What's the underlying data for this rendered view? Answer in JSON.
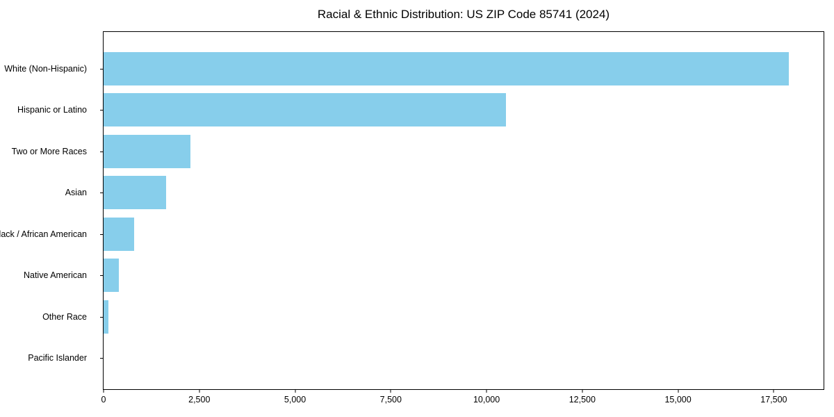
{
  "title": "Racial & Ethnic Distribution: US ZIP Code 85741 (2024)",
  "chart_data": {
    "type": "bar",
    "orientation": "horizontal",
    "title": "Racial & Ethnic Distribution: US ZIP Code 85741 (2024)",
    "xlabel": "",
    "ylabel": "",
    "categories": [
      "White (Non-Hispanic)",
      "Hispanic or Latino",
      "Two or More Races",
      "Asian",
      "Black / African American",
      "Native American",
      "Other Race",
      "Pacific Islander"
    ],
    "values": [
      17900,
      10500,
      2260,
      1630,
      800,
      400,
      120,
      0
    ],
    "xlim": [
      0,
      18800
    ],
    "x_ticks": [
      0,
      2500,
      5000,
      7500,
      10000,
      12500,
      15000,
      17500
    ],
    "x_tick_labels": [
      "0",
      "2,500",
      "5,000",
      "7,500",
      "10,000",
      "12,500",
      "15,000",
      "17,500"
    ],
    "bar_color": "#87CEEB",
    "grid": false,
    "legend": false
  },
  "colors": {
    "bar": "#87CEEB",
    "axis": "#000000",
    "text": "#000000",
    "background": "#FFFFFF"
  }
}
